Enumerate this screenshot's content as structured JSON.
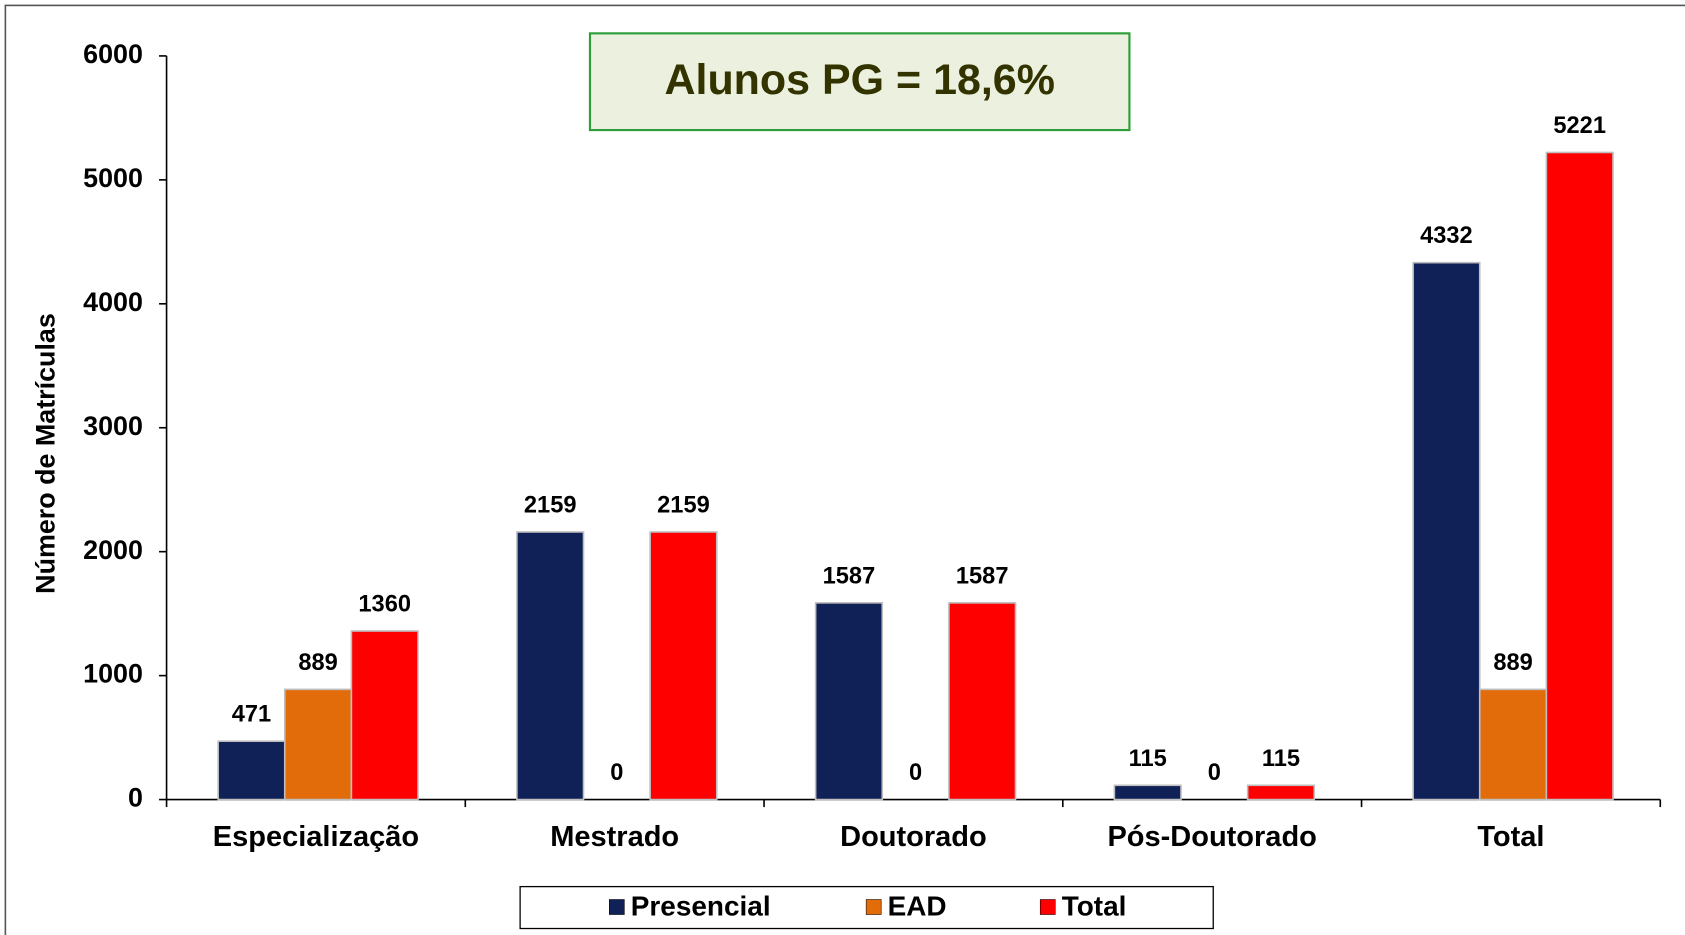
{
  "chart_data": {
    "type": "bar",
    "annotation": "Alunos PG = 18,6%",
    "y_axis_label": "Número de Matrículas",
    "categories": [
      "Especialização",
      "Mestrado",
      "Doutorado",
      "Pós-Doutorado",
      "Total"
    ],
    "series": [
      {
        "name": "Presencial",
        "color": "#0f2157",
        "values": [
          471,
          2159,
          1587,
          115,
          4332
        ]
      },
      {
        "name": "EAD",
        "color": "#e26b0a",
        "values": [
          889,
          0,
          0,
          0,
          889
        ]
      },
      {
        "name": "Total",
        "color": "#ff0000",
        "values": [
          1360,
          2159,
          1587,
          115,
          5221
        ]
      }
    ],
    "ylim": [
      0,
      6000
    ],
    "yticks": [
      0,
      1000,
      2000,
      3000,
      4000,
      5000,
      6000
    ],
    "legend": "bottom"
  }
}
